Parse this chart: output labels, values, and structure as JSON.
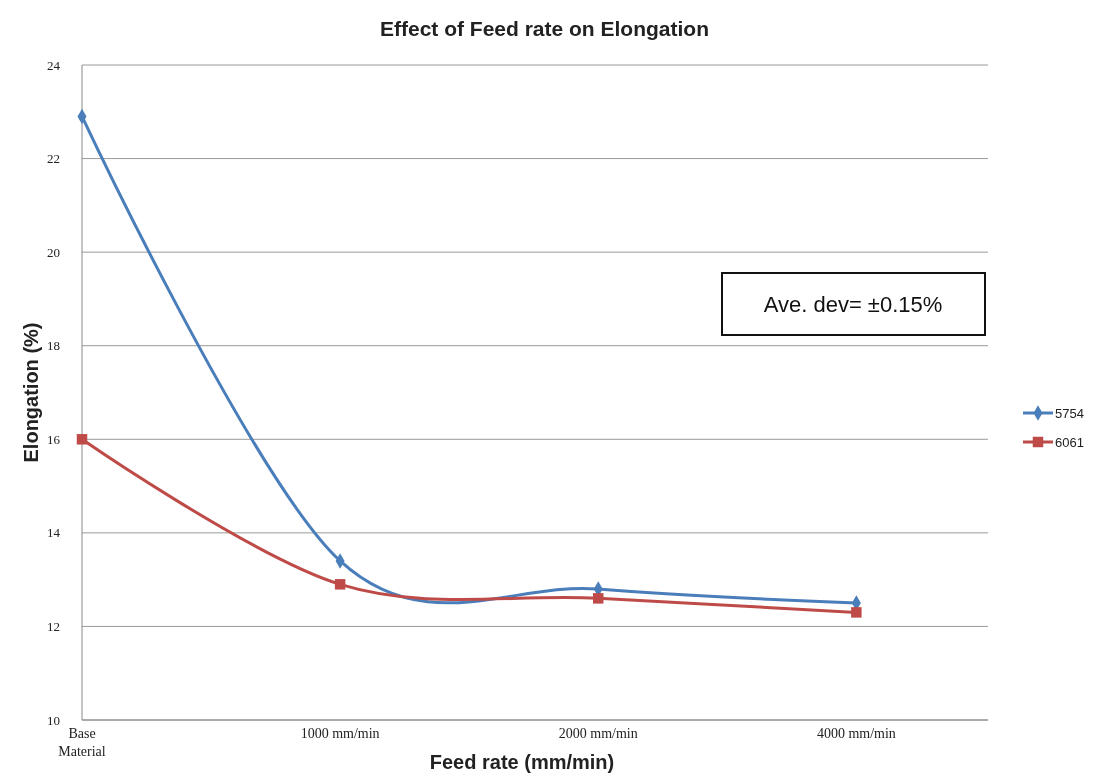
{
  "chart_data": {
    "type": "line",
    "title": "Effect of Feed rate on Elongation",
    "xlabel": "Feed rate (mm/min)",
    "ylabel": "Elongation (%)",
    "categories": [
      "Base Material",
      "1000 mm/min",
      "2000 mm/min",
      "4000 mm/min"
    ],
    "series": [
      {
        "name": "5754",
        "color": "#4a7ebb",
        "marker": "diamond",
        "values": [
          22.9,
          13.4,
          12.8,
          12.5
        ]
      },
      {
        "name": "6061",
        "color": "#be4b48",
        "marker": "square",
        "values": [
          16.0,
          12.9,
          12.6,
          12.3
        ]
      }
    ],
    "ylim": [
      10,
      24
    ],
    "yticks": [
      10,
      12,
      14,
      16,
      18,
      20,
      22,
      24
    ],
    "grid": "y",
    "legend": "right",
    "annotations": [
      "Ave. dev=  ±0.15%"
    ]
  }
}
